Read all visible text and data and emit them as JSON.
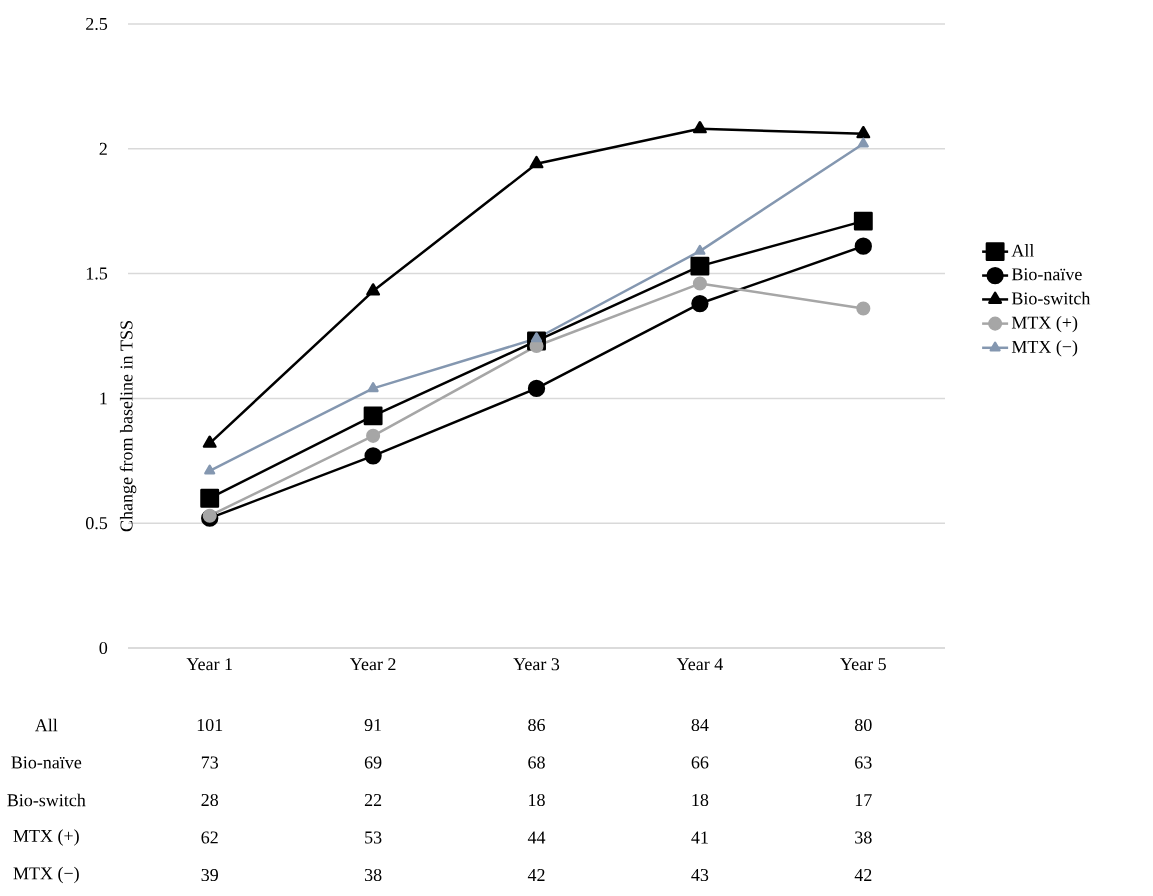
{
  "chart_data": {
    "type": "line",
    "ylabel": "Change from baseline in TSS",
    "categories": [
      "Year 1",
      "Year 2",
      "Year 3",
      "Year 4",
      "Year 5"
    ],
    "series": [
      {
        "name": "All",
        "color": "#000000",
        "marker": "square",
        "values": [
          0.6,
          0.93,
          1.23,
          1.53,
          1.71
        ]
      },
      {
        "name": "Bio-naïve",
        "color": "#000000",
        "marker": "circle",
        "values": [
          0.52,
          0.77,
          1.04,
          1.38,
          1.61
        ]
      },
      {
        "name": "Bio-switch",
        "color": "#000000",
        "marker": "triangle",
        "values": [
          0.82,
          1.43,
          1.94,
          2.08,
          2.06
        ]
      },
      {
        "name": "MTX (+)",
        "color": "#a6a6a6",
        "marker": "circle",
        "values": [
          0.53,
          0.85,
          1.21,
          1.46,
          1.36
        ]
      },
      {
        "name": "MTX (−)",
        "color": "#8497b0",
        "marker": "triangle",
        "values": [
          0.71,
          1.04,
          1.24,
          1.59,
          2.02
        ]
      }
    ],
    "ylim": [
      0,
      2.5
    ],
    "yticks": [
      0,
      0.5,
      1,
      1.5,
      2,
      2.5
    ],
    "grid": "y",
    "legend": "right",
    "line_style": "solid",
    "annotations": [
      "101",
      "91",
      "86",
      "84",
      "80",
      "73",
      "69",
      "68",
      "66",
      "63",
      "28",
      "22",
      "18",
      "18",
      "17",
      "62",
      "53",
      "44",
      "41",
      "38",
      "39",
      "38",
      "42",
      "43",
      "42"
    ]
  }
}
